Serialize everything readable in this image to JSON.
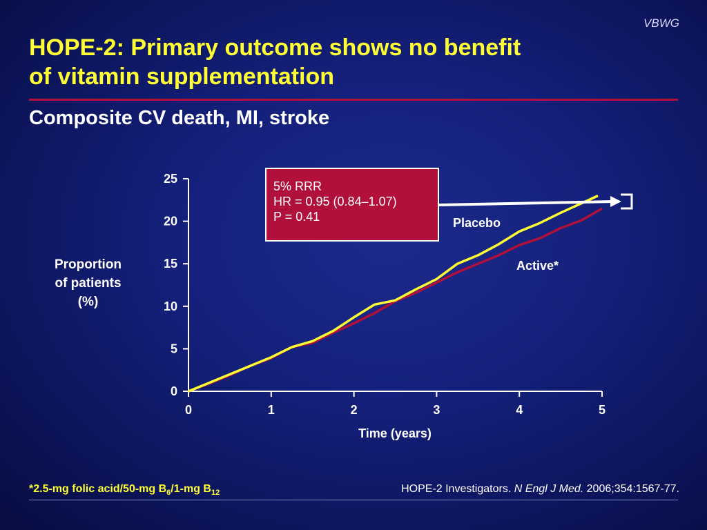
{
  "header": {
    "brand": "VBWG",
    "title_line1": "HOPE-2: Primary outcome shows no benefit",
    "title_line2": "of vitamin supplementation",
    "subtitle": "Composite CV death, MI, stroke"
  },
  "infobox": {
    "line1": "5% RRR",
    "line2": "HR = 0.95 (0.84–1.07)",
    "line3": "P = 0.41"
  },
  "footer": {
    "footnote_a": "*2.5-mg folic acid/50-mg B",
    "footnote_sub1": "6",
    "footnote_b": "/1-mg B",
    "footnote_sub2": "12",
    "citation_a": "HOPE-2 Investigators. ",
    "citation_journal": "N Engl J Med.",
    "citation_b": " 2006;354:1567-77."
  },
  "colors": {
    "title": "#ffff33",
    "placebo": "#ffff33",
    "active": "#b0103a",
    "accent_rule": "#b0103a",
    "background": "#14207a"
  },
  "chart_data": {
    "type": "line",
    "xlabel": "Time (years)",
    "ylabel": [
      "Proportion",
      "of patients",
      "(%)"
    ],
    "xlim": [
      0,
      5
    ],
    "ylim": [
      0,
      25
    ],
    "xticks": [
      0,
      1,
      2,
      3,
      4,
      5
    ],
    "yticks": [
      0,
      5,
      10,
      15,
      20,
      25
    ],
    "grid": false,
    "series": [
      {
        "name": "Placebo",
        "color": "#ffff33",
        "x": [
          0,
          0.25,
          0.5,
          0.75,
          1.0,
          1.25,
          1.5,
          1.75,
          2.0,
          2.25,
          2.5,
          2.75,
          3.0,
          3.25,
          3.5,
          3.75,
          4.0,
          4.25,
          4.5,
          4.75,
          4.95
        ],
        "y": [
          0,
          1.0,
          2.0,
          3.0,
          4.0,
          5.2,
          5.9,
          7.1,
          8.7,
          10.2,
          10.7,
          12.0,
          13.2,
          15.0,
          16.0,
          17.3,
          18.8,
          19.8,
          21.0,
          22.1,
          23.0
        ]
      },
      {
        "name": "Active*",
        "color": "#b0103a",
        "x": [
          0,
          0.25,
          0.5,
          0.75,
          1.0,
          1.25,
          1.5,
          1.75,
          2.0,
          2.25,
          2.5,
          2.75,
          3.0,
          3.25,
          3.5,
          3.75,
          4.0,
          4.25,
          4.5,
          4.75,
          5.0
        ],
        "y": [
          0,
          0.9,
          1.9,
          3.0,
          3.9,
          5.2,
          5.7,
          6.9,
          8.0,
          9.2,
          10.6,
          11.6,
          12.8,
          14.0,
          15.0,
          16.0,
          17.2,
          18.0,
          19.2,
          20.1,
          21.5
        ]
      }
    ]
  }
}
